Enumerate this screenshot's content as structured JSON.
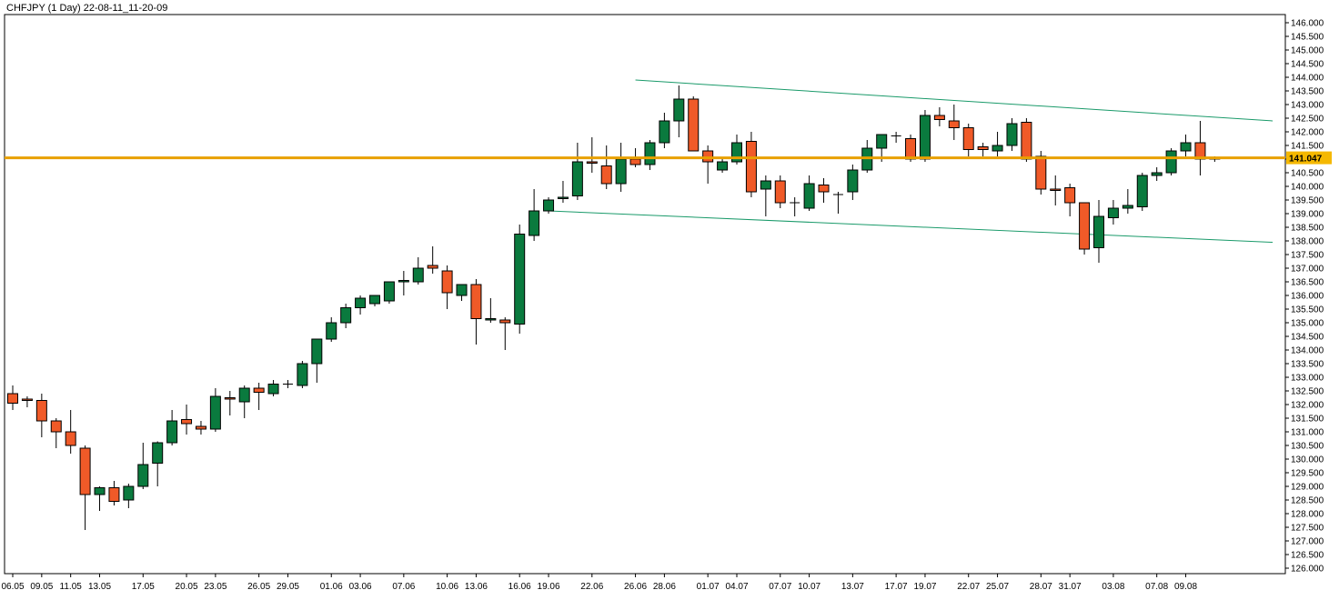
{
  "header": {
    "title": "CHFJPY (1 Day) 22-08-11_11-20-09"
  },
  "colors": {
    "bull": "#0a7a3e",
    "bear": "#f05a28",
    "wick": "#000000",
    "level_line": "#e8a000",
    "channel": "#1a9a6a",
    "price_tag": "#f5b800"
  },
  "chart_data": {
    "type": "candlestick",
    "symbol": "CHFJPY",
    "timeframe": "1 Day",
    "ylim": [
      125.8,
      146.3
    ],
    "y_ticks": [
      "126.000",
      "126.500",
      "127.000",
      "127.500",
      "128.000",
      "128.500",
      "129.000",
      "129.500",
      "130.000",
      "130.500",
      "131.000",
      "131.500",
      "132.000",
      "132.500",
      "133.000",
      "133.500",
      "134.000",
      "134.500",
      "135.000",
      "135.500",
      "136.000",
      "136.500",
      "137.000",
      "137.500",
      "138.000",
      "138.500",
      "139.000",
      "139.500",
      "140.000",
      "140.500",
      "141.000",
      "141.500",
      "142.000",
      "142.500",
      "143.000",
      "143.500",
      "144.000",
      "144.500",
      "145.000",
      "145.500",
      "146.000"
    ],
    "x_labels": [
      {
        "i": 0,
        "label": "06.05"
      },
      {
        "i": 2,
        "label": "09.05"
      },
      {
        "i": 4,
        "label": "11.05"
      },
      {
        "i": 6,
        "label": "13.05"
      },
      {
        "i": 9,
        "label": "17.05"
      },
      {
        "i": 12,
        "label": "20.05"
      },
      {
        "i": 14,
        "label": "23.05"
      },
      {
        "i": 17,
        "label": "26.05"
      },
      {
        "i": 19,
        "label": "29.05"
      },
      {
        "i": 22,
        "label": "01.06"
      },
      {
        "i": 24,
        "label": "03.06"
      },
      {
        "i": 27,
        "label": "07.06"
      },
      {
        "i": 30,
        "label": "10.06"
      },
      {
        "i": 32,
        "label": "13.06"
      },
      {
        "i": 35,
        "label": "16.06"
      },
      {
        "i": 37,
        "label": "19.06"
      },
      {
        "i": 40,
        "label": "22.06"
      },
      {
        "i": 43,
        "label": "26.06"
      },
      {
        "i": 45,
        "label": "28.06"
      },
      {
        "i": 48,
        "label": "01.07"
      },
      {
        "i": 50,
        "label": "04.07"
      },
      {
        "i": 53,
        "label": "07.07"
      },
      {
        "i": 55,
        "label": "10.07"
      },
      {
        "i": 58,
        "label": "13.07"
      },
      {
        "i": 61,
        "label": "17.07"
      },
      {
        "i": 63,
        "label": "19.07"
      },
      {
        "i": 66,
        "label": "22.07"
      },
      {
        "i": 68,
        "label": "25.07"
      },
      {
        "i": 71,
        "label": "28.07"
      },
      {
        "i": 73,
        "label": "31.07"
      },
      {
        "i": 76,
        "label": "03.08"
      },
      {
        "i": 79,
        "label": "07.08"
      },
      {
        "i": 81,
        "label": "09.08"
      }
    ],
    "current_price": "141.047",
    "level_line": 141.047,
    "channel_upper": [
      [
        43,
        143.9
      ],
      [
        87,
        142.4
      ]
    ],
    "channel_lower": [
      [
        37,
        139.1
      ],
      [
        87,
        137.95
      ]
    ],
    "candles": [
      {
        "o": 132.4,
        "h": 132.7,
        "l": 131.8,
        "c": 132.05
      },
      {
        "o": 132.2,
        "h": 132.3,
        "l": 131.9,
        "c": 132.15
      },
      {
        "o": 132.15,
        "h": 132.4,
        "l": 130.8,
        "c": 131.4
      },
      {
        "o": 131.4,
        "h": 131.5,
        "l": 130.4,
        "c": 131.0
      },
      {
        "o": 131.0,
        "h": 131.8,
        "l": 130.2,
        "c": 130.5
      },
      {
        "o": 130.4,
        "h": 130.5,
        "l": 127.4,
        "c": 128.7
      },
      {
        "o": 128.7,
        "h": 129.0,
        "l": 128.1,
        "c": 128.95
      },
      {
        "o": 128.95,
        "h": 129.2,
        "l": 128.3,
        "c": 128.45
      },
      {
        "o": 128.5,
        "h": 129.1,
        "l": 128.2,
        "c": 129.0
      },
      {
        "o": 129.0,
        "h": 130.6,
        "l": 128.9,
        "c": 129.8
      },
      {
        "o": 129.85,
        "h": 130.65,
        "l": 129.0,
        "c": 130.6
      },
      {
        "o": 130.6,
        "h": 131.8,
        "l": 130.5,
        "c": 131.4
      },
      {
        "o": 131.45,
        "h": 132.0,
        "l": 130.9,
        "c": 131.3
      },
      {
        "o": 131.2,
        "h": 131.4,
        "l": 130.9,
        "c": 131.1
      },
      {
        "o": 131.1,
        "h": 132.6,
        "l": 131.0,
        "c": 132.3
      },
      {
        "o": 132.25,
        "h": 132.5,
        "l": 131.6,
        "c": 132.2
      },
      {
        "o": 132.1,
        "h": 132.7,
        "l": 131.5,
        "c": 132.6
      },
      {
        "o": 132.6,
        "h": 132.8,
        "l": 131.8,
        "c": 132.45
      },
      {
        "o": 132.4,
        "h": 132.9,
        "l": 132.3,
        "c": 132.75
      },
      {
        "o": 132.75,
        "h": 132.9,
        "l": 132.6,
        "c": 132.75
      },
      {
        "o": 132.7,
        "h": 133.6,
        "l": 132.6,
        "c": 133.5
      },
      {
        "o": 133.5,
        "h": 134.4,
        "l": 132.8,
        "c": 134.4
      },
      {
        "o": 134.4,
        "h": 135.2,
        "l": 134.3,
        "c": 135.0
      },
      {
        "o": 135.0,
        "h": 135.7,
        "l": 134.8,
        "c": 135.55
      },
      {
        "o": 135.55,
        "h": 136.0,
        "l": 135.3,
        "c": 135.9
      },
      {
        "o": 135.7,
        "h": 136.0,
        "l": 135.6,
        "c": 136.0
      },
      {
        "o": 135.8,
        "h": 136.5,
        "l": 135.7,
        "c": 136.5
      },
      {
        "o": 136.5,
        "h": 136.9,
        "l": 136.0,
        "c": 136.55
      },
      {
        "o": 136.5,
        "h": 137.4,
        "l": 136.4,
        "c": 137.0
      },
      {
        "o": 137.1,
        "h": 137.8,
        "l": 136.8,
        "c": 137.0
      },
      {
        "o": 136.9,
        "h": 137.1,
        "l": 135.5,
        "c": 136.1
      },
      {
        "o": 136.0,
        "h": 136.4,
        "l": 135.8,
        "c": 136.4
      },
      {
        "o": 136.4,
        "h": 136.6,
        "l": 134.2,
        "c": 135.15
      },
      {
        "o": 135.1,
        "h": 135.9,
        "l": 135.0,
        "c": 135.15
      },
      {
        "o": 135.1,
        "h": 135.2,
        "l": 134.0,
        "c": 135.0
      },
      {
        "o": 134.95,
        "h": 138.6,
        "l": 134.6,
        "c": 138.25
      },
      {
        "o": 138.2,
        "h": 139.9,
        "l": 138.0,
        "c": 139.1
      },
      {
        "o": 139.1,
        "h": 139.6,
        "l": 139.0,
        "c": 139.5
      },
      {
        "o": 139.55,
        "h": 140.2,
        "l": 139.4,
        "c": 139.6
      },
      {
        "o": 139.65,
        "h": 141.6,
        "l": 139.5,
        "c": 140.9
      },
      {
        "o": 140.9,
        "h": 141.8,
        "l": 140.5,
        "c": 140.85
      },
      {
        "o": 140.75,
        "h": 141.5,
        "l": 139.9,
        "c": 140.1
      },
      {
        "o": 140.1,
        "h": 141.6,
        "l": 139.8,
        "c": 141.0
      },
      {
        "o": 141.0,
        "h": 141.4,
        "l": 140.7,
        "c": 140.8
      },
      {
        "o": 140.8,
        "h": 141.7,
        "l": 140.6,
        "c": 141.6
      },
      {
        "o": 141.6,
        "h": 142.7,
        "l": 141.4,
        "c": 142.4
      },
      {
        "o": 142.4,
        "h": 143.7,
        "l": 141.8,
        "c": 143.2
      },
      {
        "o": 143.2,
        "h": 143.3,
        "l": 141.4,
        "c": 141.3
      },
      {
        "o": 141.3,
        "h": 141.5,
        "l": 140.1,
        "c": 140.9
      },
      {
        "o": 140.6,
        "h": 141.0,
        "l": 140.5,
        "c": 140.9
      },
      {
        "o": 140.9,
        "h": 141.9,
        "l": 140.8,
        "c": 141.6
      },
      {
        "o": 141.65,
        "h": 142.0,
        "l": 139.6,
        "c": 139.8
      },
      {
        "o": 139.9,
        "h": 140.4,
        "l": 138.9,
        "c": 140.2
      },
      {
        "o": 140.2,
        "h": 140.4,
        "l": 139.2,
        "c": 139.4
      },
      {
        "o": 139.4,
        "h": 139.6,
        "l": 138.9,
        "c": 139.4
      },
      {
        "o": 139.2,
        "h": 140.4,
        "l": 139.1,
        "c": 140.1
      },
      {
        "o": 140.05,
        "h": 140.3,
        "l": 139.4,
        "c": 139.8
      },
      {
        "o": 139.7,
        "h": 139.8,
        "l": 139.0,
        "c": 139.7
      },
      {
        "o": 139.8,
        "h": 140.8,
        "l": 139.5,
        "c": 140.6
      },
      {
        "o": 140.6,
        "h": 141.7,
        "l": 140.5,
        "c": 141.4
      },
      {
        "o": 141.4,
        "h": 141.7,
        "l": 140.9,
        "c": 141.9
      },
      {
        "o": 141.85,
        "h": 142.0,
        "l": 141.6,
        "c": 141.85
      },
      {
        "o": 141.75,
        "h": 141.9,
        "l": 140.9,
        "c": 141.0
      },
      {
        "o": 141.0,
        "h": 142.8,
        "l": 140.9,
        "c": 142.6
      },
      {
        "o": 142.6,
        "h": 142.9,
        "l": 142.2,
        "c": 142.45
      },
      {
        "o": 142.4,
        "h": 143.0,
        "l": 141.7,
        "c": 142.15
      },
      {
        "o": 142.15,
        "h": 142.3,
        "l": 141.1,
        "c": 141.35
      },
      {
        "o": 141.45,
        "h": 141.6,
        "l": 141.1,
        "c": 141.35
      },
      {
        "o": 141.3,
        "h": 142.0,
        "l": 141.1,
        "c": 141.5
      },
      {
        "o": 141.5,
        "h": 142.5,
        "l": 141.3,
        "c": 142.3
      },
      {
        "o": 142.35,
        "h": 142.5,
        "l": 140.9,
        "c": 141.0
      },
      {
        "o": 141.1,
        "h": 141.3,
        "l": 139.7,
        "c": 139.9
      },
      {
        "o": 139.9,
        "h": 140.4,
        "l": 139.3,
        "c": 139.85
      },
      {
        "o": 139.95,
        "h": 140.1,
        "l": 138.9,
        "c": 139.4
      },
      {
        "o": 139.4,
        "h": 139.4,
        "l": 137.5,
        "c": 137.7
      },
      {
        "o": 137.75,
        "h": 139.5,
        "l": 137.2,
        "c": 138.9
      },
      {
        "o": 138.85,
        "h": 139.5,
        "l": 138.6,
        "c": 139.2
      },
      {
        "o": 139.2,
        "h": 139.9,
        "l": 139.0,
        "c": 139.3
      },
      {
        "o": 139.25,
        "h": 140.5,
        "l": 139.1,
        "c": 140.4
      },
      {
        "o": 140.4,
        "h": 140.7,
        "l": 140.2,
        "c": 140.5
      },
      {
        "o": 140.5,
        "h": 141.4,
        "l": 140.4,
        "c": 141.3
      },
      {
        "o": 141.3,
        "h": 141.9,
        "l": 141.1,
        "c": 141.6
      },
      {
        "o": 141.6,
        "h": 142.4,
        "l": 140.4,
        "c": 141.0
      },
      {
        "o": 141.05,
        "h": 141.1,
        "l": 140.9,
        "c": 141.0
      }
    ]
  }
}
